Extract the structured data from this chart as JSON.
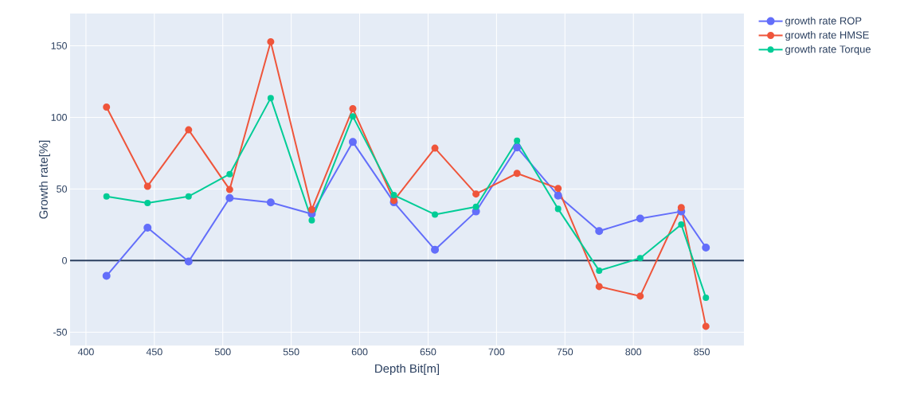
{
  "chart_data": {
    "type": "line",
    "xlabel": "Depth Bit[m]",
    "ylabel": "Growth rate[%]",
    "x": [
      415,
      445,
      475,
      505,
      535,
      565,
      595,
      625,
      655,
      685,
      715,
      745,
      775,
      805,
      835,
      853
    ],
    "series": [
      {
        "name": "growth rate ROP",
        "color": "#636efa",
        "values": [
          -10.7,
          23,
          -0.7,
          43.7,
          40.6,
          32.6,
          82.8,
          40.7,
          7.6,
          34.3,
          79,
          45.4,
          20.6,
          29.4,
          34.3,
          9.1
        ]
      },
      {
        "name": "growth rate HMSE",
        "color": "#ef553b",
        "values": [
          107.2,
          51.9,
          91.3,
          49.6,
          152.8,
          35.6,
          106.1,
          42,
          78.5,
          46.5,
          60.9,
          50.4,
          -18.1,
          -24.8,
          37,
          -45.9
        ]
      },
      {
        "name": "growth rate Torque",
        "color": "#00cc96",
        "values": [
          44.8,
          40.2,
          44.8,
          60.4,
          113.5,
          28.1,
          100.7,
          45.7,
          32.2,
          37.6,
          83.7,
          36.1,
          -7,
          1.7,
          25.2,
          -25.9
        ]
      }
    ],
    "xlim": [
      388.4,
      880.8
    ],
    "ylim": [
      -59.3,
      172.5
    ],
    "xticks": [
      400,
      450,
      500,
      550,
      600,
      650,
      700,
      750,
      800,
      850
    ],
    "yticks": [
      -50,
      0,
      50,
      100,
      150
    ],
    "ref_lines": [
      {
        "axis": "y",
        "value": 0,
        "color": "#2a3f5f"
      }
    ],
    "grid": true,
    "legend": "top right",
    "marker": "circle",
    "line_style": "solid"
  }
}
